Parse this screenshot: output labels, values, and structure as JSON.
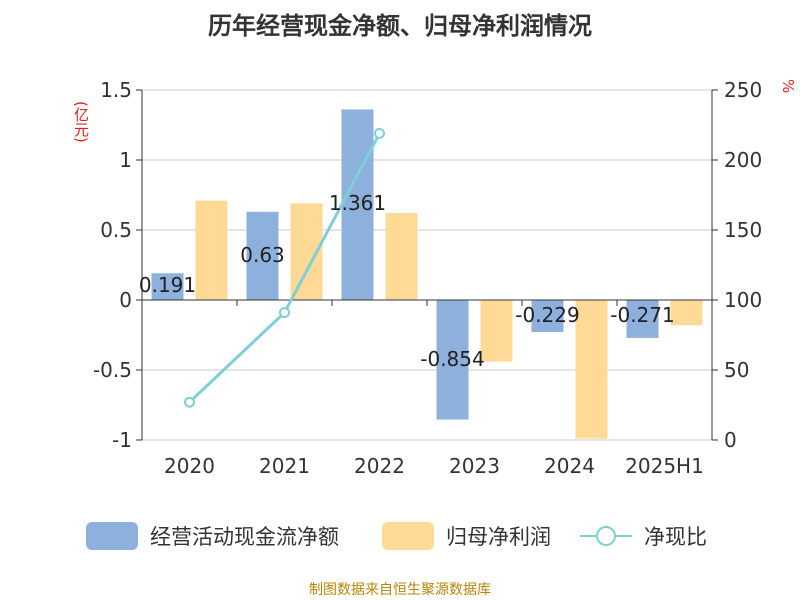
{
  "title": "历年经营现金净额、归母净利润情况",
  "source": "制图数据来自恒生聚源数据库",
  "left_unit": "(亿元)",
  "right_unit": "%",
  "colors": {
    "cash_flow": "#8eb0dc",
    "net_profit": "#ffd996",
    "ratio": "#7fcfd6",
    "grid": "#cccccc",
    "axis": "#333333"
  },
  "chart_data": {
    "type": "bar",
    "title": "历年经营现金净额、归母净利润情况",
    "categories": [
      "2020",
      "2021",
      "2022",
      "2023",
      "2024",
      "2025H1"
    ],
    "series": [
      {
        "name": "经营活动现金流净额",
        "type": "bar",
        "axis": "left",
        "values": [
          0.191,
          0.63,
          1.361,
          -0.854,
          -0.229,
          -0.271
        ],
        "data_labels": [
          "0.191",
          "0.63",
          "1.361",
          "-0.854",
          "-0.229",
          "-0.271"
        ]
      },
      {
        "name": "归母净利润",
        "type": "bar",
        "axis": "left",
        "values": [
          0.71,
          0.69,
          0.62,
          -0.44,
          -0.99,
          -0.18
        ]
      },
      {
        "name": "净现比",
        "type": "line",
        "axis": "right",
        "values": [
          27,
          91,
          219,
          null,
          null,
          null
        ]
      }
    ],
    "y_left": {
      "min": -1,
      "max": 1.5,
      "ticks": [
        -1,
        -0.5,
        0,
        0.5,
        1,
        1.5
      ],
      "tick_labels": [
        "-1",
        "-0.5",
        "0",
        "0.5",
        "1",
        "1.5"
      ]
    },
    "y_right": {
      "min": 0,
      "max": 250,
      "ticks": [
        0,
        50,
        100,
        150,
        200,
        250
      ],
      "tick_labels": [
        "0",
        "50",
        "100",
        "150",
        "200",
        "250"
      ]
    },
    "grid": true,
    "legend_position": "bottom"
  }
}
